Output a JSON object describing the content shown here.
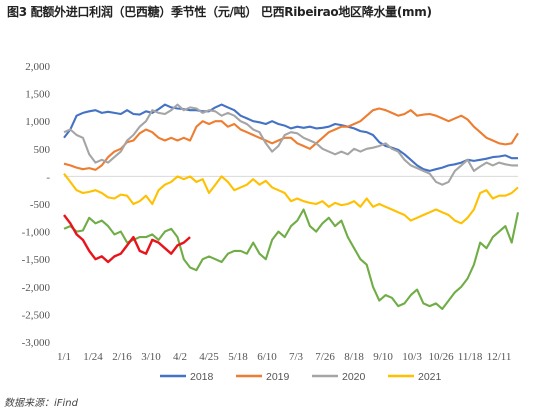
{
  "title": "图3 配额外进口利润（巴西糖）季节性（元/吨） 巴西Ribeirao地区降水量(mm)",
  "source": "数据来源：iFind",
  "chart_data": {
    "type": "line",
    "title": "图3 配额外进口利润（巴西糖）季节性（元/吨） 巴西Ribeirao地区降水量(mm)",
    "xlabel": "",
    "ylabel": "",
    "ylim": [
      -3000,
      2000
    ],
    "yticks": [
      2000,
      1500,
      1000,
      500,
      0,
      -500,
      -1000,
      -1500,
      -2000,
      -2500,
      -3000
    ],
    "ytick_labels": [
      "2,000",
      "1,500",
      "1,000",
      "500",
      "-",
      "-500",
      "-1,000",
      "-1,500",
      "-2,000",
      "-2,500",
      "-3,000"
    ],
    "xlim": [
      0,
      360
    ],
    "xticks": [
      0,
      23,
      46,
      69,
      92,
      115,
      138,
      161,
      184,
      207,
      230,
      253,
      276,
      299,
      322,
      345
    ],
    "xtick_labels": [
      "1/1",
      "1/24",
      "2/16",
      "3/10",
      "4/2",
      "4/25",
      "5/18",
      "6/10",
      "7/3",
      "7/26",
      "8/18",
      "9/10",
      "10/3",
      "10/26",
      "11/18",
      "12/11"
    ],
    "grid": false,
    "legend_position": "bottom",
    "legend": [
      "2018",
      "2019",
      "2020",
      "2021"
    ],
    "series": [
      {
        "name": "2018",
        "color": "#4472C4",
        "x": [
          0,
          5,
          10,
          15,
          20,
          25,
          30,
          35,
          40,
          45,
          50,
          55,
          60,
          65,
          70,
          75,
          80,
          85,
          90,
          95,
          100,
          105,
          110,
          115,
          120,
          125,
          130,
          135,
          140,
          145,
          150,
          155,
          160,
          165,
          170,
          175,
          180,
          185,
          190,
          195,
          200,
          205,
          210,
          215,
          220,
          225,
          230,
          235,
          240,
          245,
          250,
          255,
          260,
          265,
          270,
          275,
          280,
          285,
          290,
          295,
          300,
          305,
          310,
          315,
          320,
          325,
          330,
          335,
          340,
          345,
          350,
          355,
          360
        ],
        "y": [
          700,
          850,
          1100,
          1150,
          1180,
          1200,
          1150,
          1170,
          1150,
          1130,
          1200,
          1130,
          1120,
          1180,
          1150,
          1220,
          1300,
          1250,
          1230,
          1220,
          1200,
          1200,
          1180,
          1180,
          1250,
          1300,
          1250,
          1200,
          1100,
          1050,
          1000,
          980,
          950,
          1000,
          950,
          920,
          870,
          900,
          880,
          900,
          870,
          880,
          900,
          950,
          930,
          900,
          870,
          820,
          800,
          750,
          620,
          550,
          520,
          480,
          400,
          300,
          200,
          130,
          100,
          130,
          160,
          200,
          220,
          250,
          300,
          280,
          300,
          320,
          350,
          360,
          380,
          330,
          330
        ]
      },
      {
        "name": "2019",
        "color": "#ED7D31",
        "x": [
          0,
          5,
          10,
          15,
          20,
          25,
          30,
          35,
          40,
          45,
          50,
          55,
          60,
          65,
          70,
          75,
          80,
          85,
          90,
          95,
          100,
          105,
          110,
          115,
          120,
          125,
          130,
          135,
          140,
          145,
          150,
          155,
          160,
          165,
          170,
          175,
          180,
          185,
          190,
          195,
          200,
          205,
          210,
          215,
          220,
          225,
          230,
          235,
          240,
          245,
          250,
          255,
          260,
          265,
          270,
          275,
          280,
          285,
          290,
          295,
          300,
          305,
          310,
          315,
          320,
          325,
          330,
          335,
          340,
          345,
          350,
          355,
          360
        ],
        "y": [
          230,
          200,
          160,
          130,
          150,
          120,
          200,
          350,
          450,
          500,
          620,
          650,
          780,
          850,
          800,
          700,
          650,
          700,
          650,
          700,
          650,
          900,
          1000,
          950,
          1000,
          1000,
          900,
          950,
          850,
          800,
          750,
          700,
          650,
          600,
          650,
          700,
          700,
          600,
          550,
          500,
          600,
          700,
          800,
          850,
          900,
          900,
          950,
          1000,
          1100,
          1200,
          1230,
          1200,
          1150,
          1100,
          1130,
          1200,
          1100,
          1120,
          1130,
          1100,
          1050,
          1000,
          1050,
          1100,
          1030,
          900,
          800,
          700,
          650,
          600,
          580,
          600,
          780
        ]
      },
      {
        "name": "2020",
        "color": "#A5A5A5",
        "x": [
          0,
          5,
          10,
          15,
          20,
          25,
          30,
          35,
          40,
          45,
          50,
          55,
          60,
          65,
          70,
          75,
          80,
          85,
          90,
          95,
          100,
          105,
          110,
          115,
          120,
          125,
          130,
          135,
          140,
          145,
          150,
          155,
          160,
          165,
          170,
          175,
          180,
          185,
          190,
          195,
          200,
          205,
          210,
          215,
          220,
          225,
          230,
          235,
          240,
          245,
          250,
          255,
          260,
          265,
          270,
          275,
          280,
          285,
          290,
          295,
          300,
          305,
          310,
          315,
          320,
          325,
          330,
          335,
          340,
          345,
          350,
          355,
          360
        ],
        "y": [
          800,
          850,
          750,
          700,
          400,
          250,
          300,
          250,
          350,
          450,
          650,
          750,
          900,
          1000,
          1200,
          1150,
          1130,
          1200,
          1300,
          1200,
          1250,
          1230,
          1150,
          1200,
          1180,
          1100,
          1150,
          1100,
          1000,
          950,
          850,
          800,
          600,
          450,
          550,
          750,
          800,
          780,
          700,
          650,
          600,
          500,
          450,
          400,
          450,
          400,
          500,
          450,
          500,
          520,
          550,
          600,
          500,
          450,
          300,
          200,
          150,
          100,
          50,
          -100,
          -150,
          -100,
          100,
          200,
          300,
          100,
          180,
          250,
          200,
          250,
          220,
          200,
          200
        ]
      },
      {
        "name": "2021",
        "color": "#FFC000",
        "x": [
          0,
          5,
          10,
          15,
          20,
          25,
          30,
          35,
          40,
          45,
          50,
          55,
          60,
          65,
          70,
          75,
          80,
          85,
          90,
          95,
          100,
          105,
          110,
          115,
          120,
          125,
          130,
          135,
          140,
          145,
          150,
          155,
          160,
          165,
          170,
          175,
          180,
          185,
          190,
          195,
          200,
          205,
          210,
          215,
          220,
          225,
          230,
          235,
          240,
          245,
          250,
          255,
          260,
          265,
          270,
          275,
          280,
          285,
          290,
          295,
          300,
          305,
          310,
          315,
          320,
          325,
          330,
          335,
          340,
          345,
          350,
          355,
          360
        ],
        "y": [
          50,
          -100,
          -250,
          -300,
          -280,
          -250,
          -300,
          -380,
          -400,
          -330,
          -350,
          -500,
          -450,
          -350,
          -500,
          -250,
          -150,
          -100,
          0,
          -50,
          0,
          -100,
          -50,
          -300,
          -150,
          0,
          -100,
          -250,
          -200,
          -150,
          -50,
          -150,
          -80,
          -200,
          -250,
          -300,
          -450,
          -400,
          -450,
          -480,
          -500,
          -450,
          -550,
          -480,
          -520,
          -500,
          -450,
          -550,
          -400,
          -550,
          -500,
          -550,
          -600,
          -650,
          -700,
          -800,
          -750,
          -700,
          -650,
          -600,
          -650,
          -700,
          -800,
          -850,
          -750,
          -600,
          -300,
          -250,
          -400,
          -350,
          -350,
          -300,
          -200
        ]
      },
      {
        "name": "",
        "color": "#70AD47",
        "x": [
          0,
          5,
          10,
          15,
          20,
          25,
          30,
          35,
          40,
          45,
          50,
          55,
          60,
          65,
          70,
          75,
          80,
          85,
          90,
          95,
          100,
          105,
          110,
          115,
          120,
          125,
          130,
          135,
          140,
          145,
          150,
          155,
          160,
          165,
          170,
          175,
          180,
          185,
          190,
          195,
          200,
          205,
          210,
          215,
          220,
          225,
          230,
          235,
          240,
          245,
          250,
          255,
          260,
          265,
          270,
          275,
          280,
          285,
          290,
          295,
          300,
          305,
          310,
          315,
          320,
          325,
          330,
          335,
          340,
          345,
          350,
          355,
          360
        ],
        "y": [
          -950,
          -900,
          -1000,
          -980,
          -750,
          -850,
          -800,
          -900,
          -1050,
          -1000,
          -1200,
          -1150,
          -1100,
          -1100,
          -1050,
          -1150,
          -1000,
          -950,
          -1100,
          -1500,
          -1650,
          -1700,
          -1500,
          -1450,
          -1500,
          -1550,
          -1400,
          -1350,
          -1350,
          -1400,
          -1200,
          -1400,
          -1500,
          -1150,
          -1000,
          -1100,
          -900,
          -800,
          -600,
          -900,
          -1000,
          -850,
          -750,
          -900,
          -800,
          -1100,
          -1300,
          -1500,
          -1600,
          -2000,
          -2250,
          -2150,
          -2200,
          -2350,
          -2300,
          -2150,
          -2050,
          -2300,
          -2350,
          -2300,
          -2400,
          -2250,
          -2100,
          -2000,
          -1850,
          -1600,
          -1200,
          -1300,
          -1100,
          -1000,
          -900,
          -1200,
          -650
        ]
      },
      {
        "name": "",
        "color": "#E8141A",
        "x": [
          0,
          5,
          10,
          15,
          20,
          25,
          30,
          35,
          40,
          45,
          50,
          55,
          60,
          65,
          70,
          75,
          80,
          85,
          90,
          95,
          100
        ],
        "y": [
          -700,
          -850,
          -1050,
          -1150,
          -1350,
          -1500,
          -1450,
          -1550,
          -1450,
          -1400,
          -1250,
          -1100,
          -1350,
          -1400,
          -1150,
          -1200,
          -1300,
          -1400,
          -1250,
          -1200,
          -1100
        ]
      }
    ]
  }
}
